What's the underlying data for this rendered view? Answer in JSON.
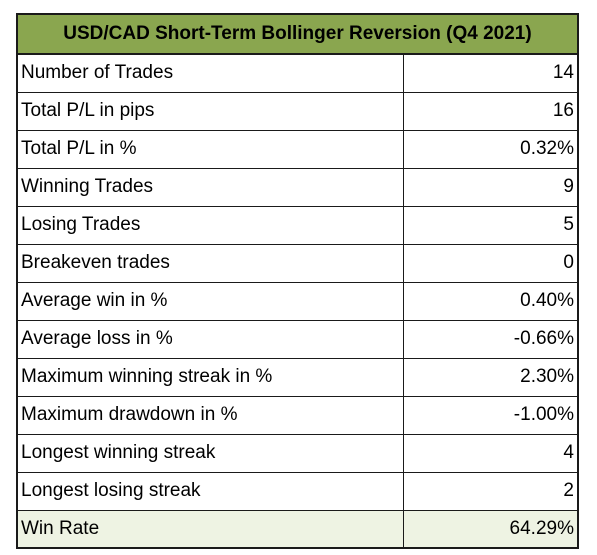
{
  "table": {
    "title": "USD/CAD Short-Term Bollinger Reversion (Q4 2021)",
    "header_bg": "#8aa64f",
    "last_row_bg": "#eef3e3",
    "rows": [
      {
        "label": "Number of Trades",
        "value": "14"
      },
      {
        "label": "Total P/L in pips",
        "value": "16"
      },
      {
        "label": "Total P/L in %",
        "value": "0.32%"
      },
      {
        "label": "Winning Trades",
        "value": "9"
      },
      {
        "label": "Losing Trades",
        "value": "5"
      },
      {
        "label": "Breakeven trades",
        "value": "0"
      },
      {
        "label": "Average win in %",
        "value": "0.40%"
      },
      {
        "label": "Average loss in %",
        "value": "-0.66%"
      },
      {
        "label": "Maximum winning streak in %",
        "value": "2.30%"
      },
      {
        "label": "Maximum drawdown in %",
        "value": "-1.00%"
      },
      {
        "label": "Longest winning streak",
        "value": "4"
      },
      {
        "label": "Longest losing streak",
        "value": "2"
      },
      {
        "label": "Win Rate",
        "value": "64.29%"
      }
    ]
  }
}
